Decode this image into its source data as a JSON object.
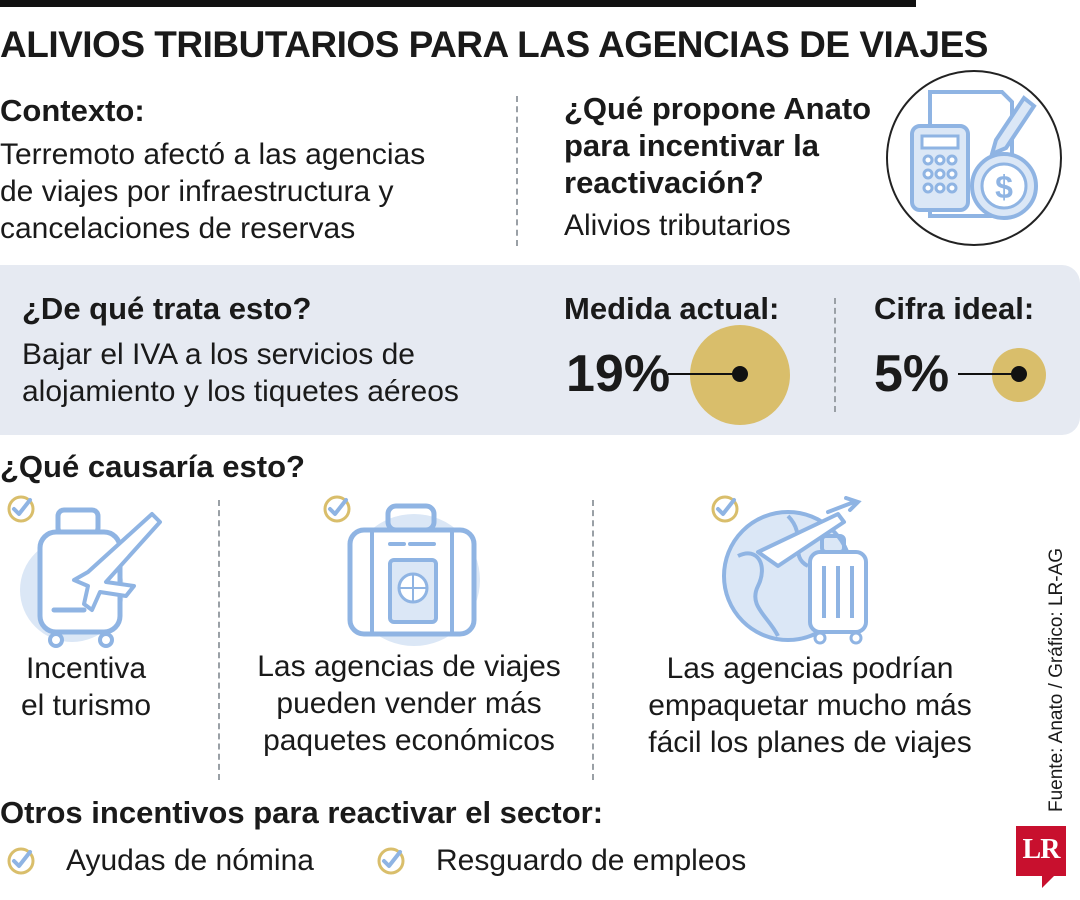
{
  "title": "ALIVIOS TRIBUTARIOS PARA LAS AGENCIAS DE VIAJES",
  "contexto": {
    "heading": "Contexto:",
    "lines": [
      "Terremoto afectó a las agencias",
      "de viajes por infraestructura y",
      "cancelaciones de reservas"
    ]
  },
  "propuesta": {
    "heading_lines": [
      "¿Qué propone Anato",
      "para incentivar la",
      "reactivación?"
    ],
    "answer": "Alivios tributarios",
    "icon": "calculator-money-icon"
  },
  "trata": {
    "heading": "¿De qué trata esto?",
    "lines": [
      "Bajar el IVA a los servicios de",
      "alojamiento y los tiquetes aéreos"
    ]
  },
  "medida_actual": {
    "label": "Medida actual:",
    "value": "19%",
    "percent": 19
  },
  "cifra_ideal": {
    "label": "Cifra ideal:",
    "value": "5%",
    "percent": 5
  },
  "causaria": {
    "heading": "¿Qué causaría esto?",
    "items": [
      {
        "icon": "luggage-plane-icon",
        "lines": [
          "Incentiva",
          "el turismo"
        ]
      },
      {
        "icon": "suitcase-passport-icon",
        "lines": [
          "Las agencias de viajes",
          "pueden vender más",
          "paquetes económicos"
        ]
      },
      {
        "icon": "globe-plane-suitcase-icon",
        "lines": [
          "Las agencias podrían",
          "empaquetar mucho más",
          "fácil los planes de viajes"
        ]
      }
    ]
  },
  "otros": {
    "heading": "Otros incentivos para reactivar el sector:",
    "items": [
      "Ayudas de nómina",
      "Resguardo de empleos"
    ]
  },
  "source": "Fuente: Anato / Gráfico: LR-AG",
  "logo": "LR",
  "colors": {
    "gold": "#d9be6b",
    "icon_blue": "#8fb4e3",
    "icon_fill": "#dbe7f6",
    "panel": "#e6eaf2"
  }
}
